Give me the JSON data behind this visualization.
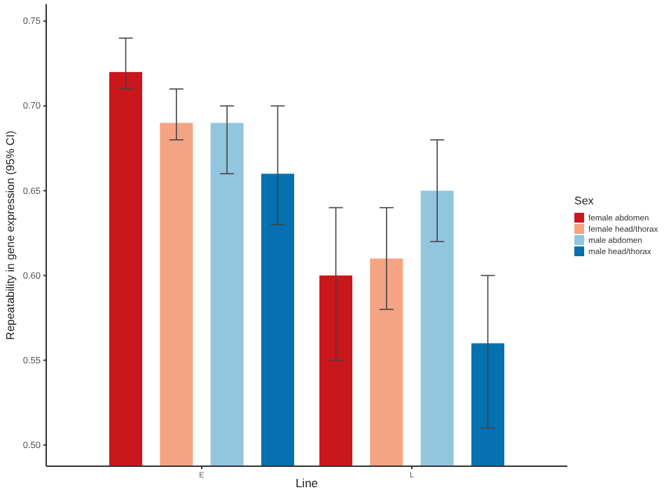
{
  "chart_data": {
    "type": "bar",
    "xlabel": "Line",
    "ylabel": "Repeatability in gene expression (95% CI)",
    "legend_title": "Sex",
    "legend": "right",
    "grid": false,
    "categories": [
      "E",
      "L"
    ],
    "ylim": [
      0.4875,
      0.76
    ],
    "yticks": [
      {
        "value": 0.5,
        "label": "0.50"
      },
      {
        "value": 0.55,
        "label": "0.55"
      },
      {
        "value": 0.6,
        "label": "0.60"
      },
      {
        "value": 0.65,
        "label": "0.65"
      },
      {
        "value": 0.7,
        "label": "0.70"
      },
      {
        "value": 0.75,
        "label": "0.75"
      }
    ],
    "series": [
      {
        "name": "female abdomen",
        "color": "#ca171c",
        "values": [
          0.72,
          0.6
        ],
        "errors": [
          [
            0.71,
            0.74
          ],
          [
            0.55,
            0.64
          ]
        ]
      },
      {
        "name": "female head/thorax",
        "color": "#f4a482",
        "values": [
          0.69,
          0.61
        ],
        "errors": [
          [
            0.68,
            0.71
          ],
          [
            0.58,
            0.64
          ]
        ]
      },
      {
        "name": "male abdomen",
        "color": "#92c5de",
        "values": [
          0.69,
          0.65
        ],
        "errors": [
          [
            0.66,
            0.7
          ],
          [
            0.62,
            0.68
          ]
        ]
      },
      {
        "name": "male head/thorax",
        "color": "#0571b0",
        "values": [
          0.66,
          0.56
        ],
        "errors": [
          [
            0.63,
            0.7
          ],
          [
            0.51,
            0.6
          ]
        ]
      }
    ]
  }
}
